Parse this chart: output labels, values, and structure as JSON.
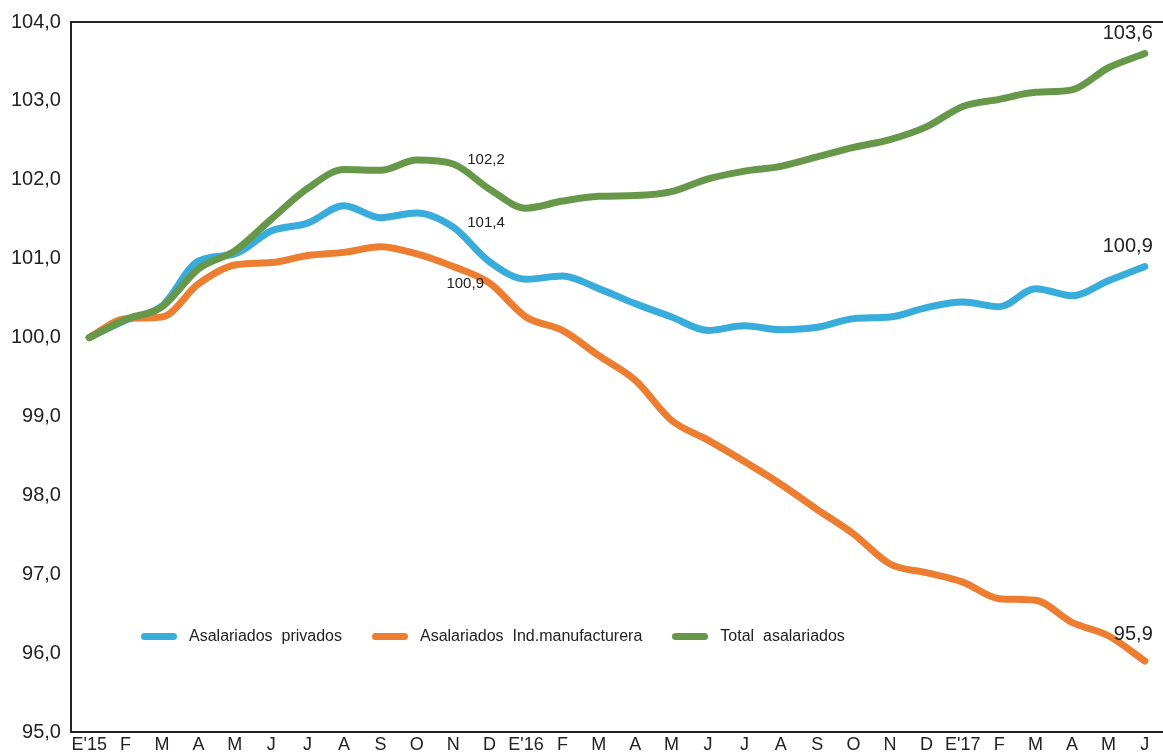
{
  "chart_data": {
    "type": "line",
    "categories": [
      "E'15",
      "F",
      "M",
      "A",
      "M",
      "J",
      "J",
      "A",
      "S",
      "O",
      "N",
      "D",
      "E'16",
      "F",
      "M",
      "A",
      "M",
      "J",
      "J",
      "A",
      "S",
      "O",
      "N",
      "D",
      "E'17",
      "F",
      "M",
      "A",
      "M",
      "J"
    ],
    "series": [
      {
        "name": "Asalariados  privados",
        "color": "#38acdb",
        "values": [
          100.0,
          100.22,
          100.4,
          100.97,
          101.06,
          101.35,
          101.45,
          101.67,
          101.52,
          101.58,
          101.4,
          100.96,
          100.74,
          100.78,
          100.62,
          100.43,
          100.26,
          100.09,
          100.15,
          100.1,
          100.13,
          100.24,
          100.26,
          100.38,
          100.45,
          100.39,
          100.62,
          100.53,
          100.72,
          100.9
        ],
        "value_labels": [
          null,
          null,
          null,
          null,
          null,
          null,
          null,
          null,
          null,
          null,
          "101,4",
          null,
          null,
          null,
          null,
          null,
          null,
          null,
          null,
          null,
          null,
          null,
          null,
          null,
          null,
          null,
          null,
          null,
          null,
          "100,9"
        ]
      },
      {
        "name": "Asalariados  Ind.manufacturera",
        "color": "#ed7d31",
        "values": [
          100.0,
          100.24,
          100.26,
          100.68,
          100.92,
          100.95,
          101.04,
          101.08,
          101.15,
          101.06,
          100.9,
          100.69,
          100.26,
          100.09,
          99.77,
          99.46,
          98.95,
          98.7,
          98.43,
          98.14,
          97.82,
          97.51,
          97.13,
          97.02,
          96.9,
          96.69,
          96.67,
          96.39,
          96.22,
          95.9
        ],
        "value_labels": [
          null,
          null,
          null,
          null,
          null,
          null,
          null,
          null,
          null,
          null,
          "100,9",
          null,
          null,
          null,
          null,
          null,
          null,
          null,
          null,
          null,
          null,
          null,
          null,
          null,
          null,
          null,
          null,
          null,
          null,
          "95,9"
        ]
      },
      {
        "name": "Total  asalariados",
        "color": "#67984a",
        "values": [
          100.0,
          100.23,
          100.39,
          100.87,
          101.1,
          101.5,
          101.89,
          102.13,
          102.12,
          102.25,
          102.2,
          101.88,
          101.64,
          101.73,
          101.79,
          101.8,
          101.85,
          102.01,
          102.11,
          102.17,
          102.29,
          102.41,
          102.51,
          102.67,
          102.93,
          103.02,
          103.11,
          103.14,
          103.42,
          103.6
        ],
        "value_labels": [
          null,
          null,
          null,
          null,
          null,
          null,
          null,
          null,
          null,
          null,
          "102,2",
          null,
          null,
          null,
          null,
          null,
          null,
          null,
          null,
          null,
          null,
          null,
          null,
          null,
          null,
          null,
          null,
          null,
          null,
          "103,6"
        ]
      }
    ],
    "ylim": [
      95,
      104
    ],
    "yticks": [
      {
        "value": 95,
        "label": "95,0"
      },
      {
        "value": 96,
        "label": "96,0"
      },
      {
        "value": 97,
        "label": "97,0"
      },
      {
        "value": 98,
        "label": "98,0"
      },
      {
        "value": 99,
        "label": "99,0"
      },
      {
        "value": 100,
        "label": "100,0"
      },
      {
        "value": 101,
        "label": "101,0"
      },
      {
        "value": 102,
        "label": "102,0"
      },
      {
        "value": 103,
        "label": "103,0"
      },
      {
        "value": 104,
        "label": "104,0"
      }
    ],
    "marker": "none",
    "legend": "bottom left"
  }
}
